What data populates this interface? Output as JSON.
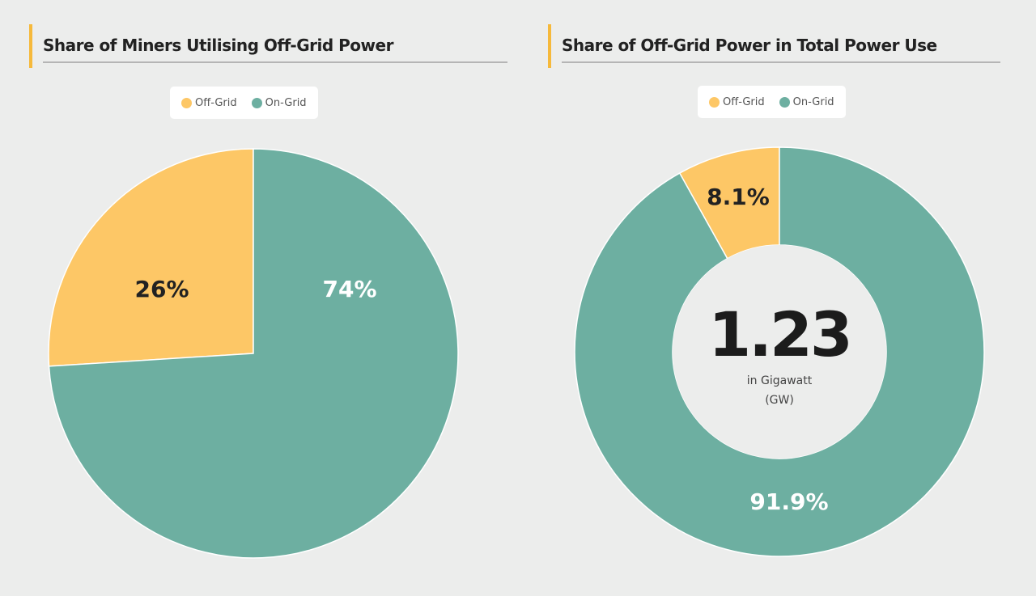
{
  "colors": {
    "off_grid": "#fdc766",
    "on_grid": "#6daf a1",
    "accent": "#f6b93b"
  },
  "chart_data": [
    {
      "type": "pie",
      "title": "Share of Miners Utilising Off-Grid Power",
      "legend": [
        "Off-Grid",
        "On-Grid"
      ],
      "legend_placement": "top",
      "categories": [
        "Off-Grid",
        "On-Grid"
      ],
      "values": [
        26,
        74
      ],
      "labels": [
        "26%",
        "74%"
      ]
    },
    {
      "type": "pie",
      "subtype": "donut",
      "title": "Share of Off-Grid Power in Total Power Use",
      "legend": [
        "Off-Grid",
        "On-Grid"
      ],
      "legend_placement": "top",
      "categories": [
        "Off-Grid",
        "On-Grid"
      ],
      "values": [
        8.1,
        91.9
      ],
      "labels": [
        "8.1%",
        "91.9%"
      ],
      "center_value": "1.23",
      "center_unit_line1": "in Gigawatt",
      "center_unit_line2": "(GW)"
    }
  ]
}
